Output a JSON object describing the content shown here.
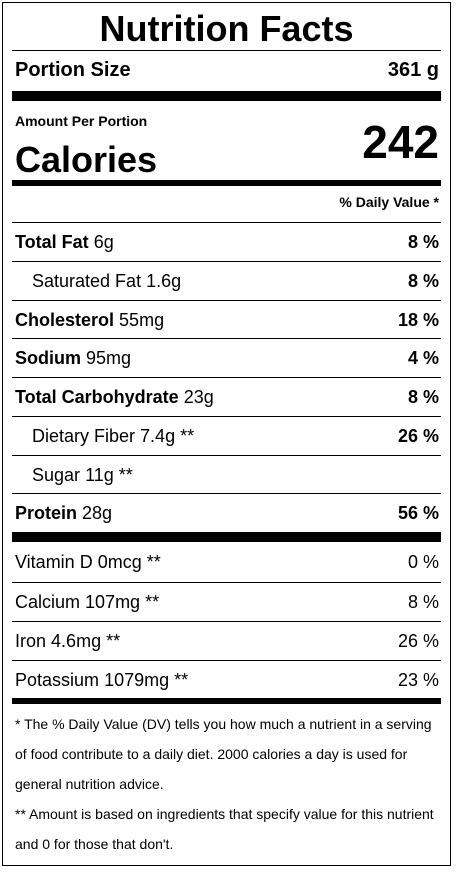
{
  "title": "Nutrition Facts",
  "portion": {
    "label": "Portion Size",
    "value": "361 g"
  },
  "amount_per_portion": "Amount Per Portion",
  "calories": {
    "label": "Calories",
    "value": "242"
  },
  "daily_value_header": "% Daily Value *",
  "nutrients": [
    {
      "name": "Total Fat",
      "amount": "6g",
      "percent": "8 %"
    },
    {
      "name": "Saturated Fat",
      "amount": "1.6g",
      "percent": "8 %"
    },
    {
      "name": "Cholesterol",
      "amount": "55mg",
      "percent": "18 %"
    },
    {
      "name": "Sodium",
      "amount": "95mg",
      "percent": "4 %"
    },
    {
      "name": "Total Carbohydrate",
      "amount": "23g",
      "percent": "8 %"
    },
    {
      "name": "Dietary Fiber",
      "amount": "7.4g **",
      "percent": "26 %"
    },
    {
      "name": "Sugar",
      "amount": "11g **",
      "percent": ""
    },
    {
      "name": "Protein",
      "amount": "28g",
      "percent": "56 %"
    }
  ],
  "vitamins": [
    {
      "name": "Vitamin D",
      "amount": "0mcg **",
      "percent": "0 %"
    },
    {
      "name": "Calcium",
      "amount": "107mg **",
      "percent": "8 %"
    },
    {
      "name": "Iron",
      "amount": "4.6mg **",
      "percent": "26 %"
    },
    {
      "name": "Potassium",
      "amount": "1079mg **",
      "percent": "23 %"
    }
  ],
  "footnotes": [
    "* The % Daily Value (DV) tells you how much a nutrient in a serving of food contribute to a daily diet. 2000 calories a day is used for general nutrition advice.",
    "** Amount is based on ingredients that specify value for this nutrient and 0 for those that don't."
  ]
}
